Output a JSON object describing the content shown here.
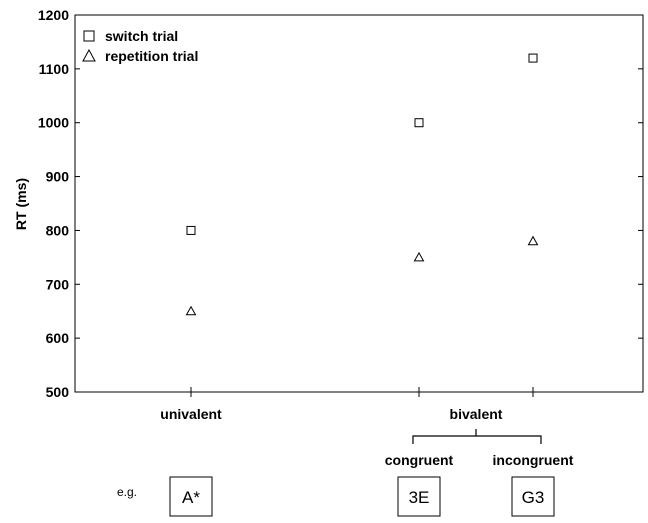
{
  "chart_data": {
    "type": "scatter",
    "title": "",
    "ylabel": "RT (ms)",
    "xlabel": "",
    "ylim": [
      500,
      1200
    ],
    "y_ticks": [
      500,
      600,
      700,
      800,
      900,
      1000,
      1100,
      1200
    ],
    "grid": false,
    "legend_position": "top-left",
    "conditions": [
      "univalent",
      "congruent",
      "incongruent"
    ],
    "groups": [
      {
        "label": "univalent",
        "conditions": [
          "univalent"
        ],
        "show_condition_labels": false
      },
      {
        "label": "bivalent",
        "conditions": [
          "congruent",
          "incongruent"
        ],
        "show_condition_labels": true
      }
    ],
    "series": [
      {
        "name": "switch trial",
        "marker": "square",
        "values": [
          800,
          1000,
          1120
        ]
      },
      {
        "name": "repetition trial",
        "marker": "triangle",
        "values": [
          650,
          750,
          780
        ]
      }
    ],
    "example_prefix": "e.g.",
    "examples": [
      "A*",
      "3E",
      "G3"
    ]
  }
}
